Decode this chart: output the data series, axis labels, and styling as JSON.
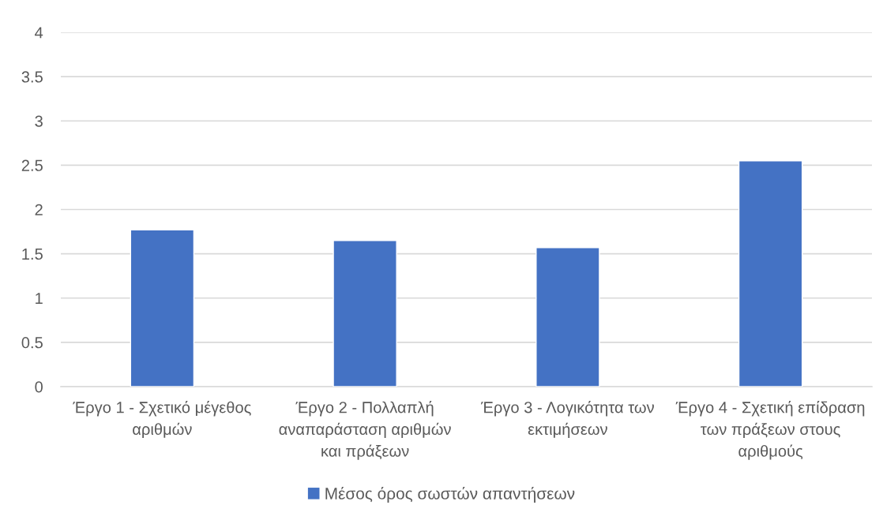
{
  "chart_data": {
    "type": "bar",
    "categories": [
      "Έργο 1 - Σχετικό μέγεθος\nαριθμών",
      "Έργο 2 - Πολλαπλή\nαναπαράσταση αριθμών\nκαι πράξεων",
      "Έργο 3 - Λογικότητα των\nεκτιμήσεων",
      "Έργο 4 - Σχετική επίδραση\nτων πράξεων στους\nαριθμούς"
    ],
    "series": [
      {
        "name": "Μέσος όρος σωστών απαντήσεων",
        "color": "#4472c4",
        "values": [
          1.77,
          1.65,
          1.57,
          2.55
        ]
      }
    ],
    "ylim": [
      0,
      4
    ],
    "yticks": [
      0,
      0.5,
      1,
      1.5,
      2,
      2.5,
      3,
      3.5,
      4
    ],
    "grid": "y",
    "legend": "bottom"
  }
}
